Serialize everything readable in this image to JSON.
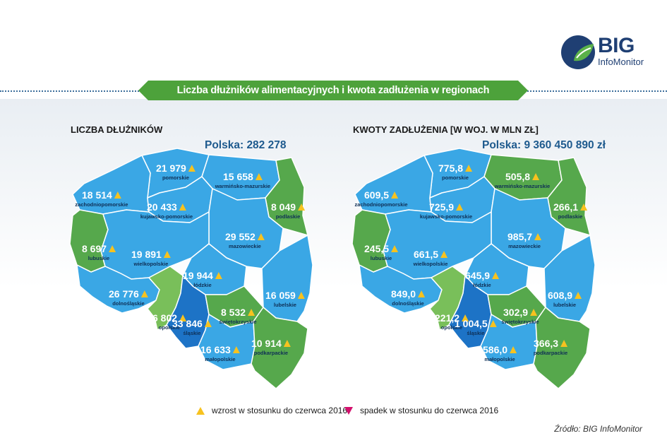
{
  "header": {
    "title": "Liczba dłużników alimentacyjnych i kwota zadłużenia w regionach",
    "logo_main": "BIG",
    "logo_sub": "InfoMonitor"
  },
  "colors": {
    "increase_region": "#3aa7e5",
    "decrease_region": "#56a84c",
    "light_green": "#79bf5a",
    "dark_blue": "#1d73c6",
    "up_marker": "#f7c21f",
    "down_marker": "#d3106d",
    "banner_green": "#4da23b"
  },
  "left_map": {
    "title": "LICZBA DŁUŻNIKÓW",
    "total": "Polska: 282 278",
    "regions": [
      {
        "name": "pomorskie",
        "value": "21 979",
        "trend": "up"
      },
      {
        "name": "warmińsko-mazurskie",
        "value": "15 658",
        "trend": "up"
      },
      {
        "name": "zachodniopomorskie",
        "value": "18 514",
        "trend": "up"
      },
      {
        "name": "kujawsko-pomorskie",
        "value": "20 433",
        "trend": "up"
      },
      {
        "name": "podlaskie",
        "value": "8 049",
        "trend": "up"
      },
      {
        "name": "mazowieckie",
        "value": "29 552",
        "trend": "up"
      },
      {
        "name": "lubuskie",
        "value": "8 697",
        "trend": "up"
      },
      {
        "name": "wielkopolskie",
        "value": "19 891",
        "trend": "up"
      },
      {
        "name": "łódzkie",
        "value": "19 944",
        "trend": "up"
      },
      {
        "name": "lubelskie",
        "value": "16 059",
        "trend": "up"
      },
      {
        "name": "dolnośląskie",
        "value": "26 776",
        "trend": "up"
      },
      {
        "name": "opolskie",
        "value": "6 802",
        "trend": "up"
      },
      {
        "name": "śląskie",
        "value": "33 846",
        "trend": "up"
      },
      {
        "name": "świętokrzyskie",
        "value": "8 532",
        "trend": "up"
      },
      {
        "name": "małopolskie",
        "value": "16 633",
        "trend": "up"
      },
      {
        "name": "podkarpackie",
        "value": "10 914",
        "trend": "up"
      }
    ]
  },
  "right_map": {
    "title": "KWOTY ZADŁUŻENIA [W WOJ. W MLN ZŁ]",
    "total": "Polska: 9 360 450 890 zł",
    "regions": [
      {
        "name": "pomorskie",
        "value": "775,8",
        "trend": "up"
      },
      {
        "name": "warmińsko-mazurskie",
        "value": "505,8",
        "trend": "up"
      },
      {
        "name": "zachodniopomorskie",
        "value": "609,5",
        "trend": "up"
      },
      {
        "name": "kujawsko-pomorskie",
        "value": "725,9",
        "trend": "up"
      },
      {
        "name": "podlaskie",
        "value": "266,1",
        "trend": "up"
      },
      {
        "name": "mazowieckie",
        "value": "985,7",
        "trend": "up"
      },
      {
        "name": "lubuskie",
        "value": "245,5",
        "trend": "up"
      },
      {
        "name": "wielkopolskie",
        "value": "661,5",
        "trend": "up"
      },
      {
        "name": "łódzkie",
        "value": "645,9",
        "trend": "up"
      },
      {
        "name": "lubelskie",
        "value": "608,9",
        "trend": "up"
      },
      {
        "name": "dolnośląskie",
        "value": "849,0",
        "trend": "up"
      },
      {
        "name": "opolskie",
        "value": "221,2",
        "trend": "up"
      },
      {
        "name": "śląskie",
        "value": "1 004,5",
        "trend": "up"
      },
      {
        "name": "świętokrzyskie",
        "value": "302,9",
        "trend": "up"
      },
      {
        "name": "małopolskie",
        "value": "586,0",
        "trend": "up"
      },
      {
        "name": "podkarpackie",
        "value": "366,3",
        "trend": "up"
      }
    ]
  },
  "legend": {
    "up_label": "wzrost w stosunku do czerwca 2016",
    "down_label": "spadek w stosunku do czerwca 2016"
  },
  "source": "Źródło: BIG InfoMonitor"
}
